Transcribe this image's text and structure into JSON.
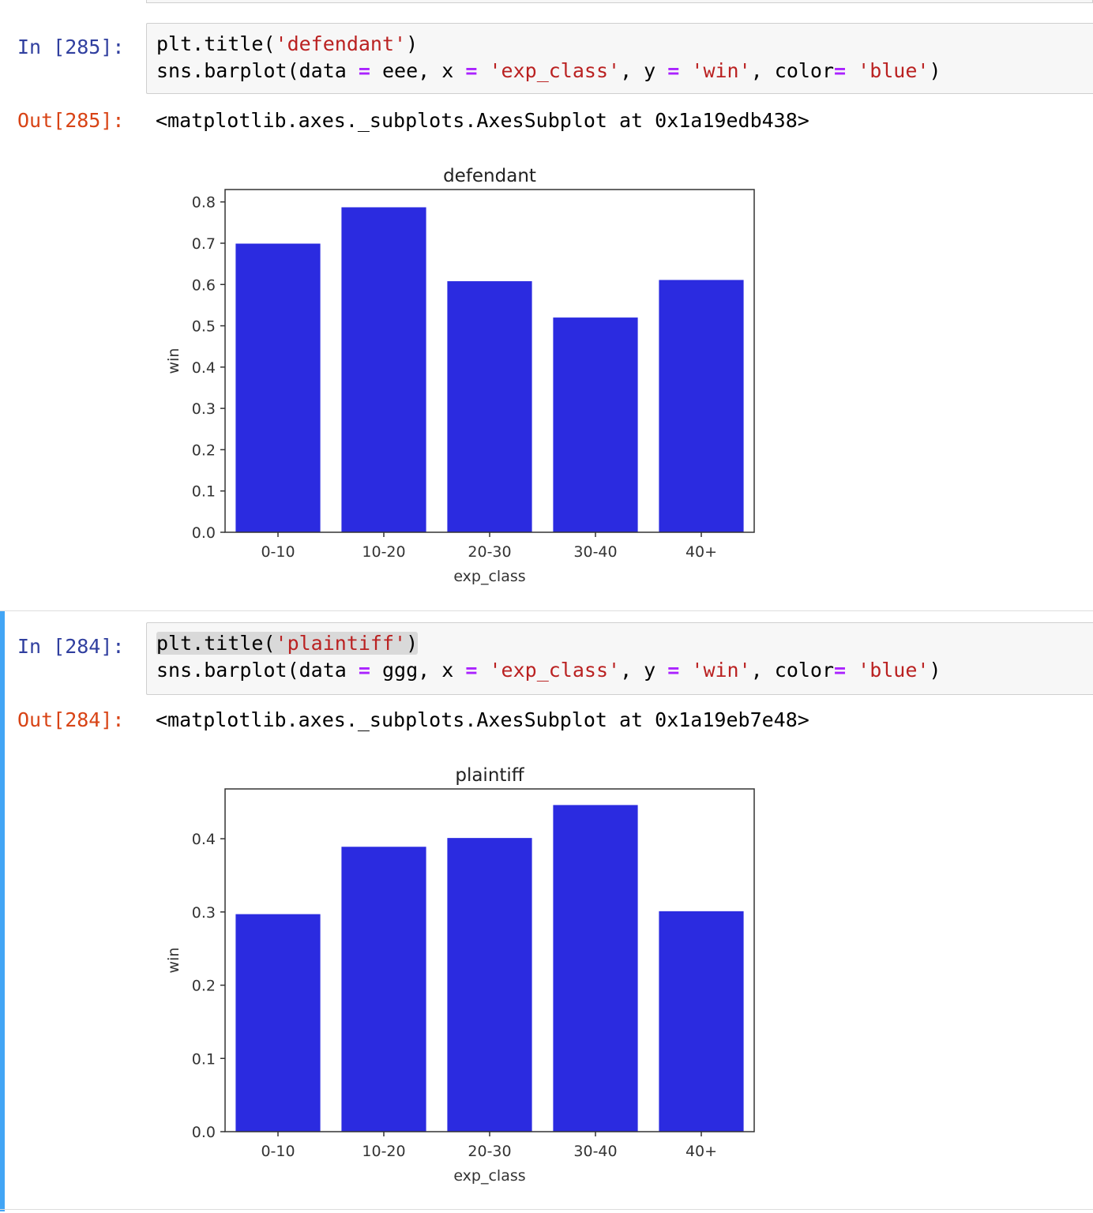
{
  "cells": [
    {
      "in_prompt": "In [285]:",
      "code": {
        "line1": {
          "a": "plt.title(",
          "s": "'defendant'",
          "b": ")"
        },
        "line2": {
          "a": "sns.barplot(data ",
          "op1": "=",
          "b": " eee, x ",
          "op2": "=",
          "c": " ",
          "s1": "'exp_class'",
          "d": ", y ",
          "op3": "=",
          "e": " ",
          "s2": "'win'",
          "f": ", color",
          "op4": "=",
          "g": " ",
          "s3": "'blue'",
          "h": ")"
        }
      },
      "out_prompt": "Out[285]:",
      "out_text": "<matplotlib.axes._subplots.AxesSubplot at 0x1a19edb438>",
      "chart_data": {
        "type": "bar",
        "title": "defendant",
        "xlabel": "exp_class",
        "ylabel": "win",
        "categories": [
          "0-10",
          "10-20",
          "20-30",
          "30-40",
          "40+"
        ],
        "values": [
          0.699,
          0.787,
          0.608,
          0.52,
          0.611
        ],
        "ylim": [
          0,
          0.83
        ],
        "yticks": [
          "0.0",
          "0.1",
          "0.2",
          "0.3",
          "0.4",
          "0.5",
          "0.6",
          "0.7",
          "0.8"
        ],
        "grid": false,
        "bar_color": "#2b2be0"
      }
    },
    {
      "in_prompt": "In [284]:",
      "code": {
        "line1": {
          "a": "plt.title(",
          "s": "'plaintiff'",
          "b": ")"
        },
        "line2": {
          "a": "sns.barplot(data ",
          "op1": "=",
          "b": " ggg, x ",
          "op2": "=",
          "c": " ",
          "s1": "'exp_class'",
          "d": ", y ",
          "op3": "=",
          "e": " ",
          "s2": "'win'",
          "f": ", color",
          "op4": "=",
          "g": " ",
          "s3": "'blue'",
          "h": ")"
        }
      },
      "out_prompt": "Out[284]:",
      "out_text": "<matplotlib.axes._subplots.AxesSubplot at 0x1a19eb7e48>",
      "chart_data": {
        "type": "bar",
        "title": "plaintiff",
        "xlabel": "exp_class",
        "ylabel": "win",
        "categories": [
          "0-10",
          "10-20",
          "20-30",
          "30-40",
          "40+"
        ],
        "values": [
          0.297,
          0.389,
          0.401,
          0.446,
          0.301
        ],
        "ylim": [
          0,
          0.468
        ],
        "yticks": [
          "0.0",
          "0.1",
          "0.2",
          "0.3",
          "0.4"
        ],
        "grid": false,
        "bar_color": "#2b2be0"
      }
    }
  ],
  "colors": {
    "prompt_in": "#303f9f",
    "prompt_out": "#d84315",
    "string": "#ba2121",
    "operator": "#aa22ff",
    "selected_cell_bar": "#42a5f5"
  }
}
